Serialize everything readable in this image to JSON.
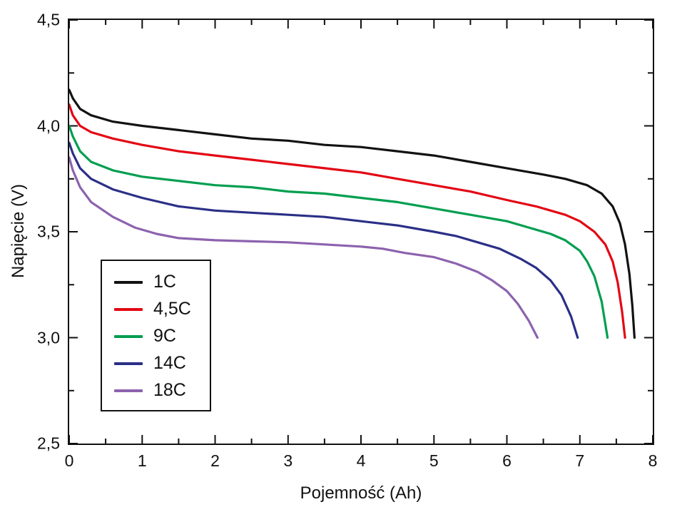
{
  "chart_data": {
    "type": "line",
    "title": "",
    "xlabel": "Pojemność (Ah)",
    "ylabel": "Napięcie (V)",
    "xlim": [
      0,
      8
    ],
    "ylim": [
      2.5,
      4.5
    ],
    "grid": false,
    "legend_position": "inside-left-bottom",
    "x_ticks": [
      {
        "v": 0,
        "label": "0"
      },
      {
        "v": 1,
        "label": "1"
      },
      {
        "v": 2,
        "label": "2"
      },
      {
        "v": 3,
        "label": "3"
      },
      {
        "v": 4,
        "label": "4"
      },
      {
        "v": 5,
        "label": "5"
      },
      {
        "v": 6,
        "label": "6"
      },
      {
        "v": 7,
        "label": "7"
      },
      {
        "v": 8,
        "label": "8"
      }
    ],
    "y_ticks": [
      {
        "v": 2.5,
        "label": "2,5"
      },
      {
        "v": 3.0,
        "label": "3,0"
      },
      {
        "v": 3.5,
        "label": "3,5"
      },
      {
        "v": 4.0,
        "label": "4,0"
      },
      {
        "v": 4.5,
        "label": "4,5"
      }
    ],
    "x_minor_ticks": [
      0.5,
      1.5,
      2.5,
      3.5,
      4.5,
      5.5,
      6.5,
      7.5
    ],
    "y_minor_ticks": [
      2.75,
      3.25,
      3.75,
      4.25
    ],
    "series": [
      {
        "name": "1C",
        "color": "#121212",
        "points": [
          [
            0,
            4.17
          ],
          [
            0.05,
            4.13
          ],
          [
            0.15,
            4.08
          ],
          [
            0.3,
            4.05
          ],
          [
            0.6,
            4.02
          ],
          [
            1,
            4.0
          ],
          [
            1.5,
            3.98
          ],
          [
            2,
            3.96
          ],
          [
            2.5,
            3.94
          ],
          [
            3,
            3.93
          ],
          [
            3.5,
            3.91
          ],
          [
            4,
            3.9
          ],
          [
            4.5,
            3.88
          ],
          [
            5,
            3.86
          ],
          [
            5.5,
            3.83
          ],
          [
            6,
            3.8
          ],
          [
            6.5,
            3.77
          ],
          [
            6.8,
            3.75
          ],
          [
            7.1,
            3.72
          ],
          [
            7.3,
            3.68
          ],
          [
            7.45,
            3.62
          ],
          [
            7.55,
            3.54
          ],
          [
            7.62,
            3.44
          ],
          [
            7.68,
            3.3
          ],
          [
            7.72,
            3.15
          ],
          [
            7.75,
            3.0
          ]
        ]
      },
      {
        "name": "4,5C",
        "color": "#e30613",
        "points": [
          [
            0,
            4.1
          ],
          [
            0.05,
            4.05
          ],
          [
            0.15,
            4.0
          ],
          [
            0.3,
            3.97
          ],
          [
            0.6,
            3.94
          ],
          [
            1,
            3.91
          ],
          [
            1.5,
            3.88
          ],
          [
            2,
            3.86
          ],
          [
            2.5,
            3.84
          ],
          [
            3,
            3.82
          ],
          [
            3.5,
            3.8
          ],
          [
            4,
            3.78
          ],
          [
            4.5,
            3.75
          ],
          [
            5,
            3.72
          ],
          [
            5.5,
            3.69
          ],
          [
            6,
            3.65
          ],
          [
            6.4,
            3.62
          ],
          [
            6.8,
            3.58
          ],
          [
            7.0,
            3.55
          ],
          [
            7.2,
            3.5
          ],
          [
            7.35,
            3.44
          ],
          [
            7.45,
            3.36
          ],
          [
            7.52,
            3.26
          ],
          [
            7.58,
            3.12
          ],
          [
            7.62,
            3.0
          ]
        ]
      },
      {
        "name": "9C",
        "color": "#009e4f",
        "points": [
          [
            0,
            4.0
          ],
          [
            0.05,
            3.95
          ],
          [
            0.15,
            3.88
          ],
          [
            0.3,
            3.83
          ],
          [
            0.6,
            3.79
          ],
          [
            1,
            3.76
          ],
          [
            1.5,
            3.74
          ],
          [
            2,
            3.72
          ],
          [
            2.5,
            3.71
          ],
          [
            3,
            3.69
          ],
          [
            3.5,
            3.68
          ],
          [
            4,
            3.66
          ],
          [
            4.5,
            3.64
          ],
          [
            5,
            3.61
          ],
          [
            5.5,
            3.58
          ],
          [
            6,
            3.55
          ],
          [
            6.3,
            3.52
          ],
          [
            6.6,
            3.49
          ],
          [
            6.8,
            3.46
          ],
          [
            7.0,
            3.41
          ],
          [
            7.1,
            3.36
          ],
          [
            7.2,
            3.29
          ],
          [
            7.3,
            3.17
          ],
          [
            7.38,
            3.0
          ]
        ]
      },
      {
        "name": "14C",
        "color": "#2b2f87",
        "points": [
          [
            0,
            3.92
          ],
          [
            0.05,
            3.87
          ],
          [
            0.15,
            3.8
          ],
          [
            0.3,
            3.75
          ],
          [
            0.6,
            3.7
          ],
          [
            1,
            3.66
          ],
          [
            1.5,
            3.62
          ],
          [
            2,
            3.6
          ],
          [
            2.5,
            3.59
          ],
          [
            3,
            3.58
          ],
          [
            3.5,
            3.57
          ],
          [
            4,
            3.55
          ],
          [
            4.5,
            3.53
          ],
          [
            5,
            3.5
          ],
          [
            5.3,
            3.48
          ],
          [
            5.6,
            3.45
          ],
          [
            5.9,
            3.42
          ],
          [
            6.2,
            3.37
          ],
          [
            6.4,
            3.33
          ],
          [
            6.6,
            3.27
          ],
          [
            6.75,
            3.2
          ],
          [
            6.88,
            3.1
          ],
          [
            6.97,
            3.0
          ]
        ]
      },
      {
        "name": "18C",
        "color": "#8c62ae",
        "points": [
          [
            0,
            3.85
          ],
          [
            0.05,
            3.79
          ],
          [
            0.15,
            3.71
          ],
          [
            0.3,
            3.64
          ],
          [
            0.6,
            3.57
          ],
          [
            0.9,
            3.52
          ],
          [
            1.2,
            3.49
          ],
          [
            1.5,
            3.47
          ],
          [
            2,
            3.46
          ],
          [
            2.5,
            3.455
          ],
          [
            3,
            3.45
          ],
          [
            3.5,
            3.44
          ],
          [
            4,
            3.43
          ],
          [
            4.3,
            3.42
          ],
          [
            4.6,
            3.4
          ],
          [
            5,
            3.38
          ],
          [
            5.3,
            3.35
          ],
          [
            5.6,
            3.31
          ],
          [
            5.8,
            3.27
          ],
          [
            6.0,
            3.22
          ],
          [
            6.15,
            3.16
          ],
          [
            6.3,
            3.08
          ],
          [
            6.42,
            3.0
          ]
        ]
      }
    ]
  }
}
